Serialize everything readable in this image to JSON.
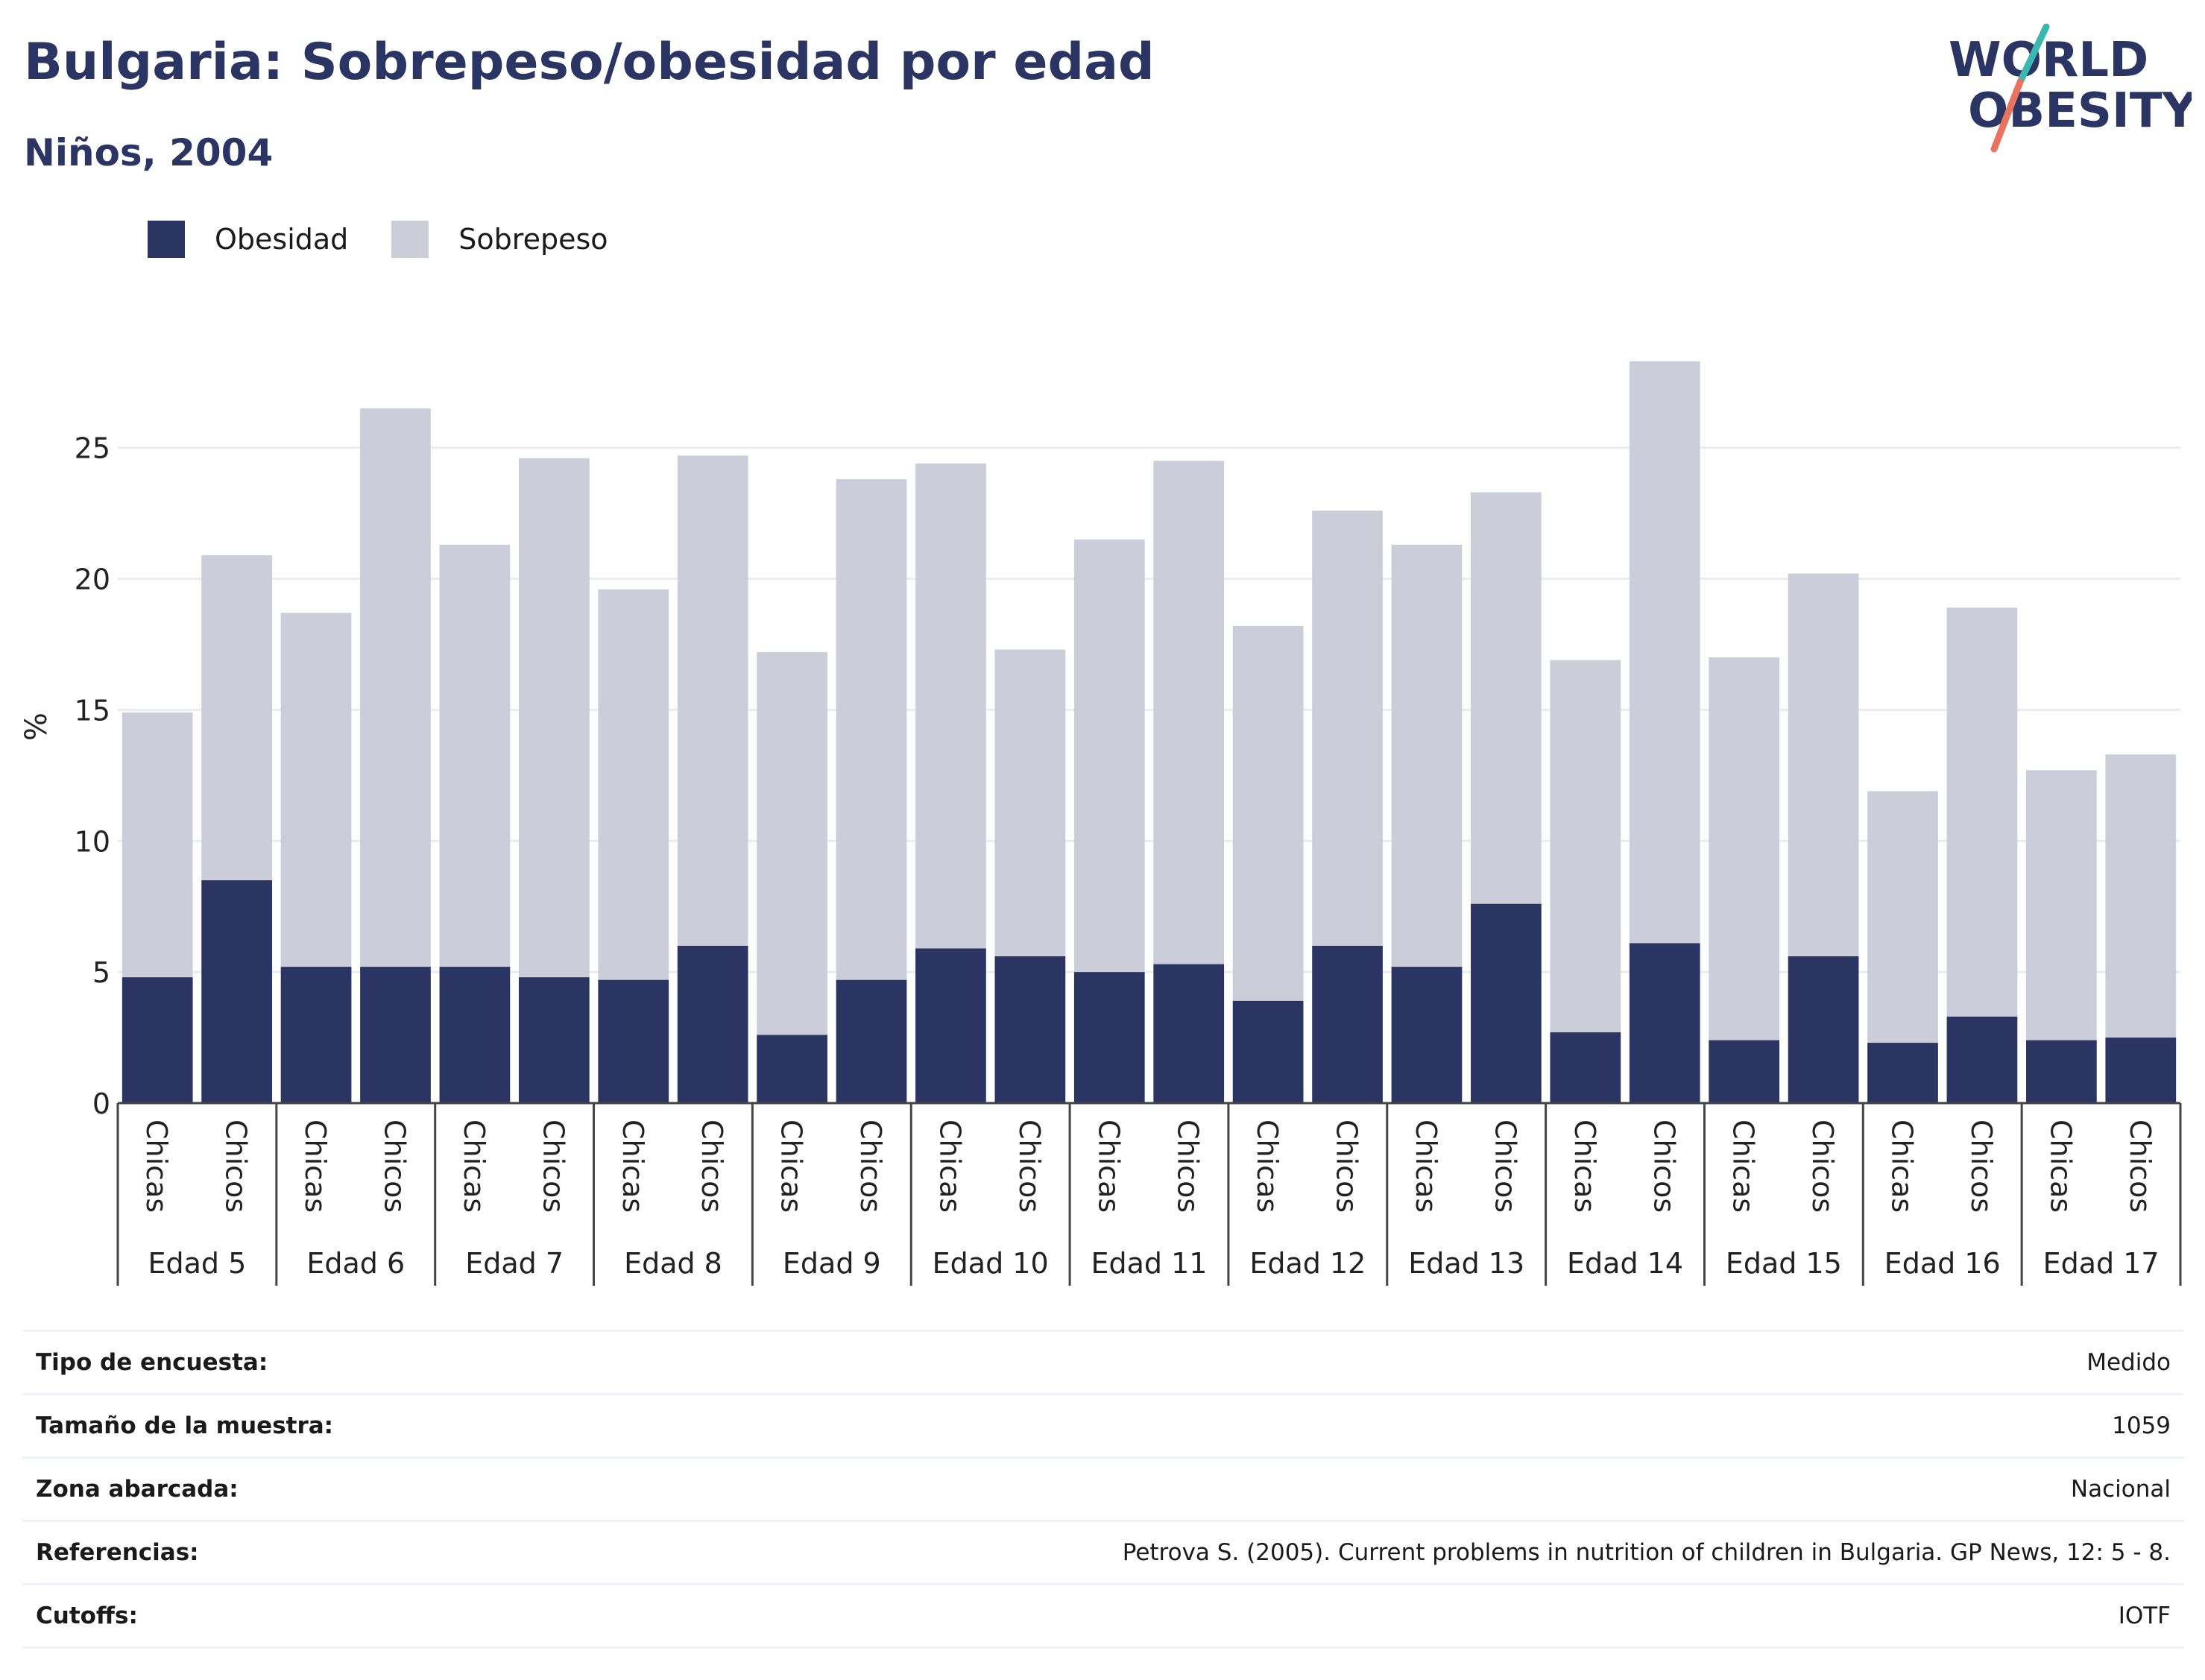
{
  "header": {
    "title": "Bulgaria: Sobrepeso/obesidad por edad",
    "subtitle": "Niños, 2004"
  },
  "logo": {
    "line1": "WORLD",
    "line2": "OBESITY",
    "colors": {
      "text": "#2a3563",
      "slash_top": "#3ab8b0",
      "slash_bottom": "#e8735f"
    }
  },
  "legend": [
    {
      "label": "Obesidad",
      "color": "#2a3563"
    },
    {
      "label": "Sobrepeso",
      "color": "#cbcdd9"
    }
  ],
  "chart_data": {
    "type": "bar",
    "stacked": true,
    "ylabel": "%",
    "ylim": [
      0,
      29
    ],
    "yticks": [
      0,
      5,
      10,
      15,
      20,
      25
    ],
    "grid": true,
    "legend_position": "top-left",
    "groups": [
      "Edad 5",
      "Edad 6",
      "Edad 7",
      "Edad 8",
      "Edad 9",
      "Edad 10",
      "Edad 11",
      "Edad 12",
      "Edad 13",
      "Edad 14",
      "Edad 15",
      "Edad 16",
      "Edad 17"
    ],
    "sub_categories": [
      "Chicas",
      "Chicos"
    ],
    "series": [
      {
        "name": "Obesidad",
        "color": "#2a3563",
        "values": [
          4.8,
          8.5,
          5.2,
          5.2,
          5.2,
          4.8,
          4.7,
          6.0,
          2.6,
          4.7,
          5.9,
          5.6,
          5.0,
          5.3,
          3.9,
          6.0,
          5.2,
          7.6,
          2.7,
          6.1,
          2.4,
          5.6,
          2.3,
          3.3,
          2.4,
          2.5
        ]
      },
      {
        "name": "Sobrepeso",
        "color": "#cbcdd9",
        "values": [
          10.1,
          12.4,
          13.5,
          21.3,
          16.1,
          19.8,
          14.9,
          18.7,
          14.6,
          19.1,
          18.5,
          11.7,
          16.5,
          19.2,
          14.3,
          16.6,
          16.1,
          15.7,
          14.2,
          22.2,
          14.6,
          14.6,
          9.6,
          15.6,
          10.3,
          10.8
        ]
      }
    ],
    "colors": {
      "grid": "#ebebf0",
      "axis": "#444444"
    }
  },
  "info": [
    {
      "label": "Tipo de encuesta:",
      "value": "Medido"
    },
    {
      "label": "Tamaño de la muestra:",
      "value": "1059"
    },
    {
      "label": "Zona abarcada:",
      "value": "Nacional"
    },
    {
      "label": "Referencias:",
      "value": "Petrova S. (2005). Current problems in nutrition of children in Bulgaria. GP News, 12: 5 - 8."
    },
    {
      "label": "Cutoffs:",
      "value": "IOTF"
    }
  ]
}
